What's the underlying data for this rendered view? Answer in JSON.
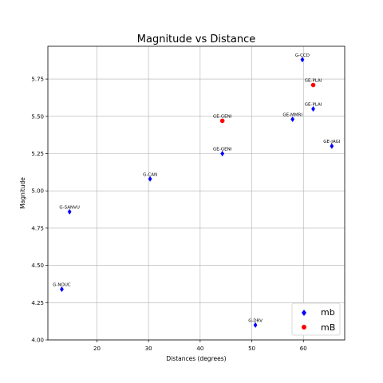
{
  "chart_data": {
    "type": "scatter",
    "title": "Magnitude vs Distance",
    "xlabel": "Distances (degrees)",
    "ylabel": "Magnitude",
    "xlim": [
      10.5,
      68
    ],
    "ylim": [
      4.0,
      5.97
    ],
    "xticks": [
      20,
      30,
      40,
      50,
      60
    ],
    "yticks": [
      4.0,
      4.25,
      4.5,
      4.75,
      5.0,
      5.25,
      5.5,
      5.75
    ],
    "grid": true,
    "legend_position": "bottom-right",
    "series": [
      {
        "name": "mb",
        "marker": "diamond",
        "color": "#0000ff",
        "points": [
          {
            "x": 13.2,
            "y": 4.34,
            "label": "G-NOUC"
          },
          {
            "x": 14.7,
            "y": 4.86,
            "label": "G-SANVU"
          },
          {
            "x": 30.3,
            "y": 5.08,
            "label": "G-CAN"
          },
          {
            "x": 44.3,
            "y": 5.25,
            "label": "GE-GENI"
          },
          {
            "x": 50.7,
            "y": 4.1,
            "label": "G-DRV"
          },
          {
            "x": 57.9,
            "y": 5.48,
            "label": "GE-MMRI"
          },
          {
            "x": 59.8,
            "y": 5.88,
            "label": "G-CCD"
          },
          {
            "x": 61.9,
            "y": 5.55,
            "label": "GE-PLAI"
          },
          {
            "x": 65.5,
            "y": 5.3,
            "label": "GE-JAGI"
          }
        ]
      },
      {
        "name": "mB",
        "marker": "circle",
        "color": "#ff0000",
        "points": [
          {
            "x": 44.3,
            "y": 5.47,
            "label": "GE-GENI"
          },
          {
            "x": 61.9,
            "y": 5.71,
            "label": "GE-PLAI"
          }
        ]
      }
    ]
  }
}
